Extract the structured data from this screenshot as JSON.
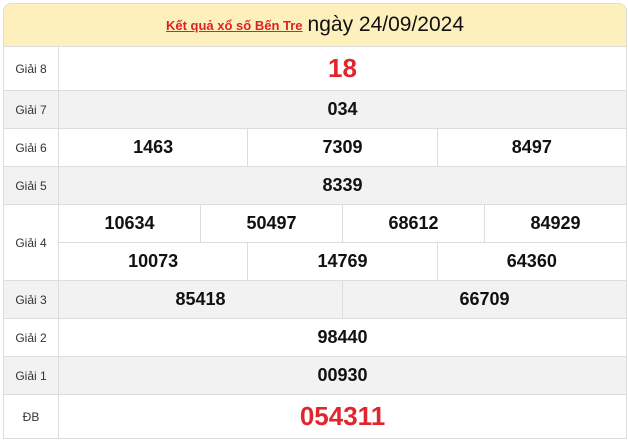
{
  "header": {
    "link": "Kết quả xổ số Bến Tre",
    "date": "ngày 24/09/2024"
  },
  "colors": {
    "header_bg": "#fdf0bd",
    "accent_red": "#e0262c"
  },
  "prizes": [
    {
      "label": "Giải 8",
      "rows": [
        [
          "18"
        ]
      ]
    },
    {
      "label": "Giải 7",
      "rows": [
        [
          "034"
        ]
      ]
    },
    {
      "label": "Giải 6",
      "rows": [
        [
          "1463",
          "7309",
          "8497"
        ]
      ]
    },
    {
      "label": "Giải 5",
      "rows": [
        [
          "8339"
        ]
      ]
    },
    {
      "label": "Giải 4",
      "rows": [
        [
          "10634",
          "50497",
          "68612",
          "84929"
        ],
        [
          "10073",
          "14769",
          "64360"
        ]
      ]
    },
    {
      "label": "Giải 3",
      "rows": [
        [
          "85418",
          "66709"
        ]
      ]
    },
    {
      "label": "Giải 2",
      "rows": [
        [
          "98440"
        ]
      ]
    },
    {
      "label": "Giải 1",
      "rows": [
        [
          "00930"
        ]
      ]
    },
    {
      "label": "ĐB",
      "rows": [
        [
          "054311"
        ]
      ]
    }
  ]
}
